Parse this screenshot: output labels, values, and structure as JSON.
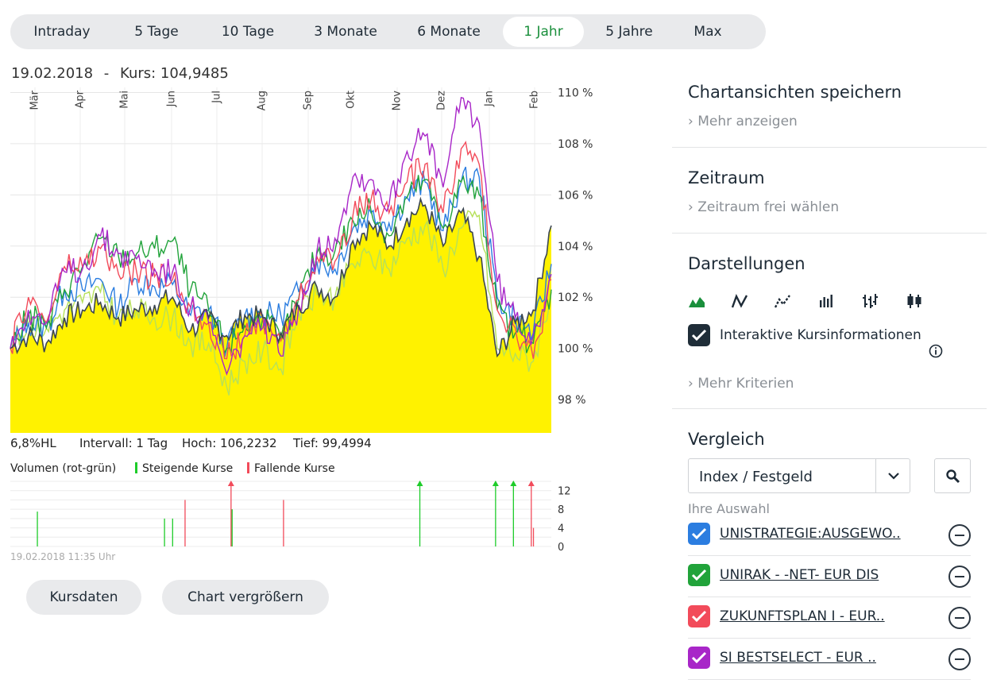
{
  "tabs": [
    {
      "label": "Intraday",
      "active": false
    },
    {
      "label": "5 Tage",
      "active": false
    },
    {
      "label": "10 Tage",
      "active": false
    },
    {
      "label": "3 Monate",
      "active": false
    },
    {
      "label": "6 Monate",
      "active": false
    },
    {
      "label": "1 Jahr",
      "active": true
    },
    {
      "label": "5 Jahre",
      "active": false
    },
    {
      "label": "Max",
      "active": false
    }
  ],
  "header": {
    "date": "19.02.2018",
    "separator": "-",
    "kurs_label": "Kurs: 104,9485"
  },
  "stats": {
    "hl": "6,8%HL",
    "interval": "Intervall: 1 Tag",
    "high": "Hoch: 106,2232",
    "low": "Tief: 99,4994"
  },
  "volume_legend": {
    "title": "Volumen (rot-grün)",
    "up": "Steigende Kurse",
    "down": "Fallende Kurse"
  },
  "timestamp": "19.02.2018 11:35 Uhr",
  "buttons": {
    "kursdaten": "Kursdaten",
    "vergroessern": "Chart vergrößern"
  },
  "right": {
    "chartansichten": {
      "title": "Chartansichten speichern",
      "link": "Mehr anzeigen"
    },
    "zeitraum": {
      "title": "Zeitraum",
      "link": "Zeitraum frei wählen"
    },
    "darstellungen": {
      "title": "Darstellungen",
      "checkbox_label": "Interaktive Kursinformationen",
      "link": "Mehr Kriterien",
      "icons": [
        "mountain-chart-icon",
        "line-chart-icon",
        "dotted-line-chart-icon",
        "bar-chart-icon",
        "ohlc-chart-icon",
        "candlestick-chart-icon"
      ]
    },
    "vergleich": {
      "title": "Vergleich",
      "select_value": "Index / Festgeld",
      "auswahl_label": "Ihre Auswahl",
      "items": [
        {
          "label": "UNISTRATEGIE:AUSGEWO..",
          "color": "#2b7de0"
        },
        {
          "label": "UNIRAK - -NET- EUR DIS",
          "color": "#21a33a"
        },
        {
          "label": "ZUKUNFTSPLAN I - EUR..",
          "color": "#f24b5a"
        },
        {
          "label": "SI BESTSELECT - EUR ..",
          "color": "#a826c8"
        }
      ]
    }
  },
  "chart_data": [
    {
      "type": "area",
      "months": [
        "Mär",
        "Apr",
        "Mai",
        "Jun",
        "Jul",
        "Aug",
        "Sep",
        "Okt",
        "Nov",
        "Dez",
        "Jan",
        "Feb"
      ],
      "y_ticks": [
        "110 %",
        "108 %",
        "106 %",
        "104 %",
        "102 %",
        "100 %",
        "98 %"
      ],
      "ylim": [
        96.7,
        110.2
      ],
      "colors": {
        "area": "#fff200",
        "main_line": "#3b4650",
        "unistrategie": "#2b7de0",
        "unirak": "#21a33a",
        "zukunftsplan": "#f24b5a",
        "sibestselect": "#a826c8",
        "light_green": "#b6e05a"
      },
      "main": [
        100,
        100.5,
        100.2,
        101.2,
        101.5,
        101.8,
        101.2,
        101.5,
        101.7,
        102,
        100.7,
        101.2,
        100.5,
        101.3,
        101.2,
        100.6,
        101.6,
        102.4,
        102,
        104.2,
        104.8,
        104,
        105.1,
        105.6,
        104,
        105.3,
        103.6,
        99.7,
        101,
        101.5,
        104.8
      ],
      "series": [
        {
          "name": "UNISTRATEGIE:AUSGEWO..",
          "values": [
            100,
            101,
            100.8,
            102.3,
            102.3,
            102.7,
            101.6,
            102.7,
            102.4,
            102.5,
            101.3,
            101.5,
            100,
            101.3,
            101.3,
            101.3,
            102.2,
            103.4,
            103.1,
            104.7,
            105.3,
            104.9,
            105.9,
            106.5,
            104.6,
            106.5,
            106.7,
            102,
            101.2,
            100.6,
            103.3
          ]
        },
        {
          "name": "UNIRAK - -NET- EUR DIS",
          "values": [
            100,
            101.3,
            100.8,
            102.3,
            103.2,
            104.3,
            103.6,
            103.7,
            103.9,
            104.2,
            102.3,
            101.5,
            100,
            100.9,
            101.2,
            100.3,
            102,
            103.7,
            103.8,
            105,
            105.4,
            104.4,
            105.9,
            106.6,
            104.7,
            106.5,
            106,
            101.5,
            100.6,
            100.2,
            102.3
          ]
        },
        {
          "name": "ZUKUNFTSPLAN I - EUR..",
          "values": [
            100,
            102,
            101,
            103.2,
            103.2,
            103.9,
            102.9,
            103,
            102.8,
            102.7,
            101.6,
            101,
            99.6,
            100.5,
            101.2,
            100.3,
            101.9,
            103.6,
            103.4,
            105.2,
            105.8,
            105.3,
            106.5,
            107.2,
            105.3,
            107.8,
            107.2,
            101.5,
            100.8,
            99.6,
            102.7
          ]
        },
        {
          "name": "SI BESTSELECT - EUR ..",
          "values": [
            100,
            101.5,
            101,
            103,
            103.1,
            104.4,
            103.7,
            103.5,
            103.1,
            103,
            101.6,
            101,
            99,
            100.5,
            100.8,
            99.7,
            101.7,
            103.8,
            104.3,
            106.7,
            106.6,
            105.6,
            107.7,
            108.3,
            106.3,
            109.8,
            108.8,
            102.6,
            101.2,
            100.5,
            102.9
          ]
        },
        {
          "name": "",
          "values": [
            100,
            101,
            100.8,
            101.5,
            101.8,
            102.2,
            101.2,
            101.5,
            101.2,
            101.2,
            100.2,
            100.2,
            98.5,
            99.5,
            99.9,
            99.2,
            101.4,
            102.1,
            102,
            103.3,
            103.6,
            103.1,
            104.3,
            104.8,
            103.1,
            104.7,
            105.2,
            100,
            99.8,
            99.5,
            102.2
          ]
        }
      ]
    },
    {
      "type": "bar",
      "y_ticks": [
        "12",
        "8",
        "4",
        "0"
      ],
      "ylim": [
        0,
        14
      ],
      "bars": [
        {
          "x": 0.05,
          "value": 7.5,
          "direction": "up"
        },
        {
          "x": 0.285,
          "value": 6,
          "direction": "up"
        },
        {
          "x": 0.3,
          "value": 6,
          "direction": "up"
        },
        {
          "x": 0.323,
          "value": 10,
          "direction": "down"
        },
        {
          "x": 0.408,
          "value": 14,
          "direction": "down"
        },
        {
          "x": 0.41,
          "value": 8,
          "direction": "up"
        },
        {
          "x": 0.505,
          "value": 10,
          "direction": "down"
        },
        {
          "x": 0.757,
          "value": 14,
          "direction": "up"
        },
        {
          "x": 0.897,
          "value": 14,
          "direction": "up"
        },
        {
          "x": 0.93,
          "value": 14,
          "direction": "up"
        },
        {
          "x": 0.963,
          "value": 14,
          "direction": "down"
        },
        {
          "x": 0.967,
          "value": 4,
          "direction": "down"
        }
      ]
    }
  ]
}
